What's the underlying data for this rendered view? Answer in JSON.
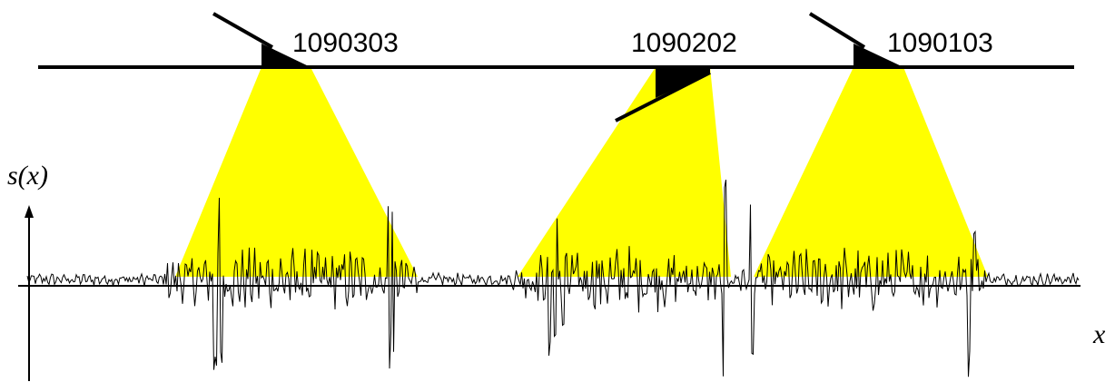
{
  "sensors": [
    {
      "label": "1090303"
    },
    {
      "label": "1090202"
    },
    {
      "label": "1090103"
    }
  ],
  "y_axis_label": "s(x)",
  "x_axis_label": "x"
}
